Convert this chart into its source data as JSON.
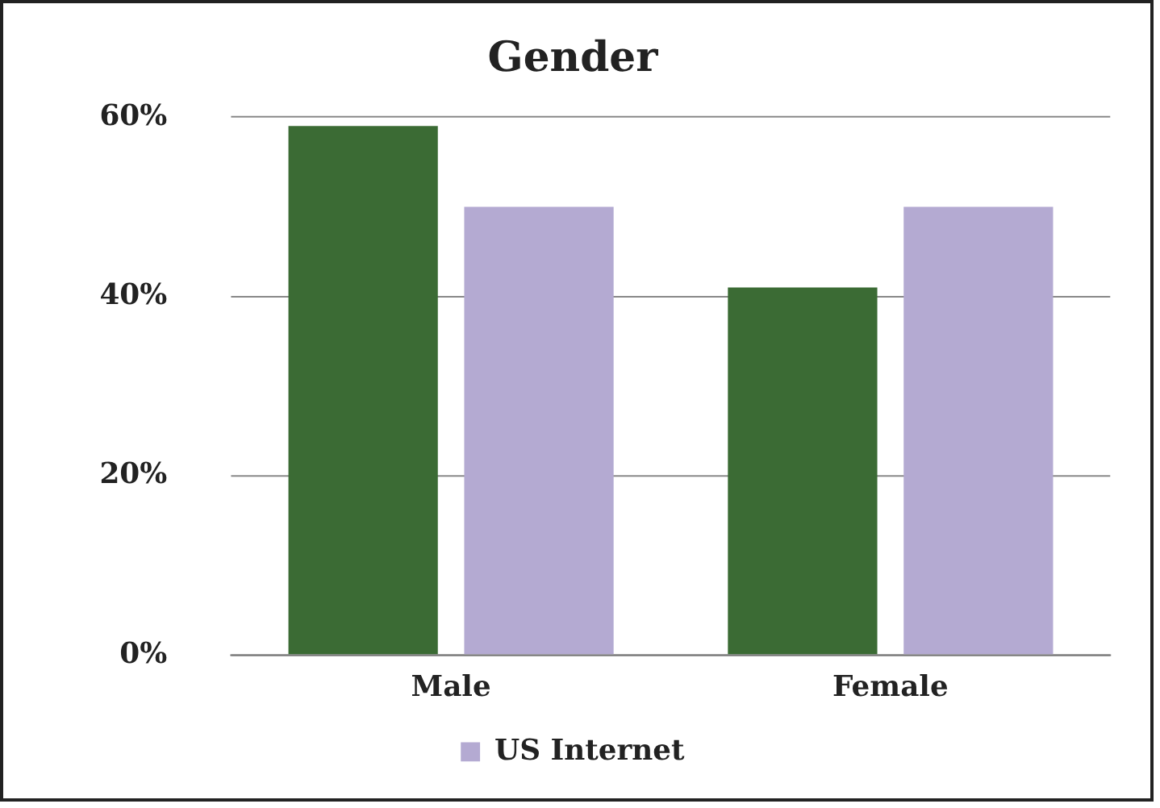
{
  "chart_data": {
    "type": "bar",
    "title": "Gender",
    "categories": [
      "Male",
      "Female"
    ],
    "series": [
      {
        "color": "#3b6b34",
        "values": [
          59,
          41
        ]
      },
      {
        "name": "US Internet",
        "color": "#b4aad2",
        "values": [
          50,
          50
        ]
      }
    ],
    "ylim": [
      0,
      60
    ],
    "yticks": [
      {
        "value": 0,
        "label": "0%"
      },
      {
        "value": 20,
        "label": "20%"
      },
      {
        "value": 40,
        "label": "40%"
      },
      {
        "value": 60,
        "label": "60%"
      }
    ],
    "grid": "y",
    "legend": "bottom"
  }
}
